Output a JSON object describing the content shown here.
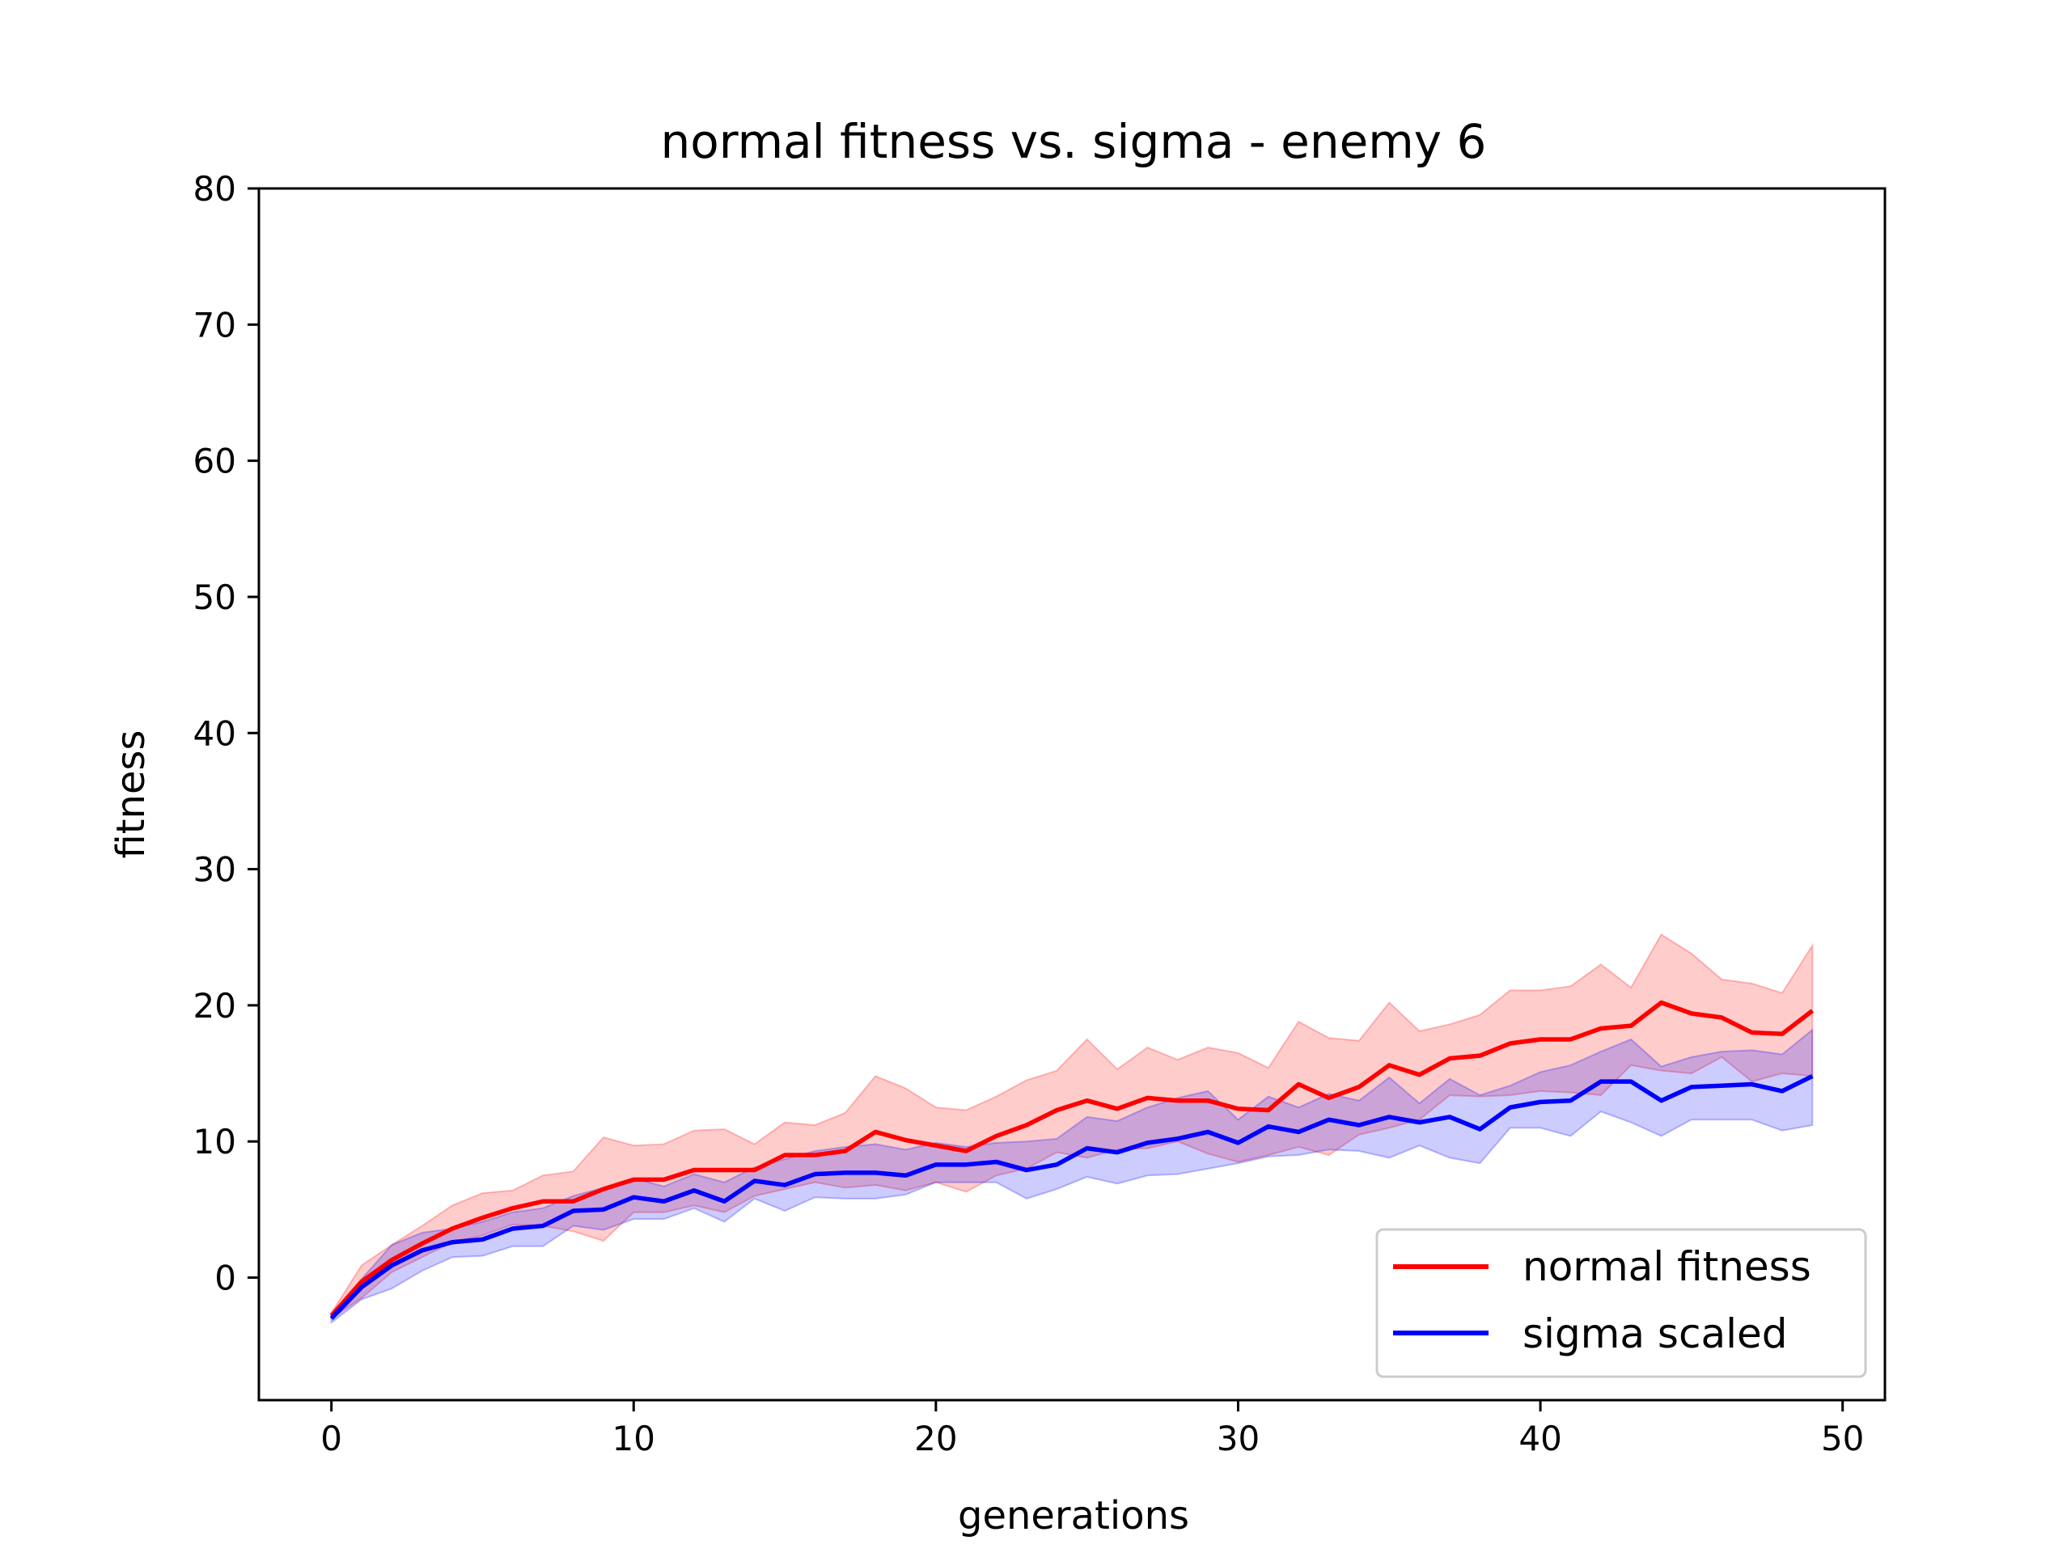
{
  "chart_data": {
    "type": "line",
    "title": "normal fitness vs. sigma - enemy 6",
    "xlabel": "generations",
    "ylabel": "fitness",
    "xlim": [
      -2.4,
      51.4
    ],
    "ylim": [
      -9,
      80
    ],
    "xticks": [
      0,
      10,
      20,
      30,
      40,
      50
    ],
    "yticks": [
      0,
      10,
      20,
      30,
      40,
      50,
      60,
      70,
      80
    ],
    "grid": false,
    "legend_position": "lower-right",
    "x": [
      0,
      1,
      2,
      3,
      4,
      5,
      6,
      7,
      8,
      9,
      10,
      11,
      12,
      13,
      14,
      15,
      16,
      17,
      18,
      19,
      20,
      21,
      22,
      23,
      24,
      25,
      26,
      27,
      28,
      29,
      30,
      31,
      32,
      33,
      34,
      35,
      36,
      37,
      38,
      39,
      40,
      41,
      42,
      43,
      44,
      45,
      46,
      47,
      48,
      49
    ],
    "series": [
      {
        "name": "normal fitness",
        "color": "#ff0000",
        "band_color": "#ff0000",
        "values": [
          -2.8,
          -0.3,
          1.3,
          2.5,
          3.6,
          4.4,
          5.1,
          5.6,
          5.6,
          6.5,
          7.2,
          7.2,
          7.9,
          7.9,
          7.9,
          9.0,
          9.0,
          9.3,
          10.7,
          10.1,
          9.7,
          9.3,
          10.4,
          11.2,
          12.3,
          13.0,
          12.4,
          13.2,
          13.0,
          13.0,
          12.4,
          12.3,
          14.2,
          13.2,
          14.0,
          15.6,
          14.9,
          16.1,
          16.3,
          17.2,
          17.5,
          17.5,
          18.3,
          18.5,
          20.2,
          19.4,
          19.1,
          18.0,
          17.9,
          19.6
        ],
        "upper": [
          -2.6,
          0.9,
          2.4,
          3.8,
          5.3,
          6.2,
          6.4,
          7.5,
          7.8,
          10.3,
          9.7,
          9.8,
          10.8,
          10.9,
          9.8,
          11.4,
          11.2,
          12.1,
          14.8,
          13.9,
          12.5,
          12.3,
          13.3,
          14.5,
          15.2,
          17.5,
          15.3,
          16.9,
          16.0,
          16.9,
          16.5,
          15.4,
          18.8,
          17.6,
          17.4,
          20.2,
          18.1,
          18.6,
          19.3,
          21.1,
          21.1,
          21.4,
          23.0,
          21.3,
          25.2,
          23.8,
          21.9,
          21.6,
          20.9,
          24.4
        ],
        "lower": [
          -3.0,
          -1.5,
          0.4,
          1.5,
          2.6,
          3.1,
          3.9,
          3.8,
          3.4,
          2.7,
          4.8,
          4.8,
          5.3,
          4.8,
          6.0,
          6.5,
          7.0,
          6.6,
          6.8,
          6.4,
          7.0,
          6.3,
          7.5,
          8.0,
          9.2,
          8.8,
          9.4,
          9.5,
          10.0,
          9.1,
          8.5,
          9.0,
          9.6,
          9.0,
          10.5,
          11.0,
          11.6,
          13.4,
          13.3,
          13.4,
          13.7,
          13.6,
          13.4,
          15.6,
          15.2,
          15.0,
          16.2,
          14.4,
          15.0,
          14.8
        ]
      },
      {
        "name": "sigma scaled",
        "color": "#0000ff",
        "band_color": "#0000ff",
        "values": [
          -3.0,
          -0.7,
          0.9,
          2.0,
          2.6,
          2.8,
          3.6,
          3.8,
          4.9,
          5.0,
          5.9,
          5.6,
          6.4,
          5.6,
          7.1,
          6.8,
          7.6,
          7.7,
          7.7,
          7.5,
          8.3,
          8.3,
          8.5,
          7.9,
          8.3,
          9.5,
          9.2,
          9.9,
          10.2,
          10.7,
          9.9,
          11.1,
          10.7,
          11.6,
          11.2,
          11.8,
          11.4,
          11.8,
          10.9,
          12.5,
          12.9,
          13.0,
          14.4,
          14.4,
          13.0,
          14.0,
          14.1,
          14.2,
          13.7,
          14.8
        ],
        "upper": [
          -2.7,
          -0.1,
          2.4,
          3.3,
          3.6,
          4.1,
          4.8,
          5.1,
          6.0,
          6.6,
          7.3,
          6.7,
          7.6,
          7.0,
          8.1,
          8.7,
          9.3,
          9.6,
          9.8,
          9.4,
          9.9,
          9.6,
          9.9,
          10.0,
          10.2,
          11.8,
          11.5,
          12.5,
          13.2,
          13.7,
          11.6,
          13.3,
          12.5,
          13.5,
          13.0,
          14.7,
          12.8,
          14.6,
          13.4,
          14.1,
          15.1,
          15.6,
          16.6,
          17.5,
          15.5,
          16.2,
          16.6,
          16.7,
          16.4,
          18.2
        ],
        "lower": [
          -3.3,
          -1.6,
          -0.8,
          0.5,
          1.5,
          1.6,
          2.3,
          2.3,
          3.8,
          3.5,
          4.3,
          4.3,
          5.1,
          4.1,
          5.8,
          4.9,
          5.9,
          5.8,
          5.8,
          6.1,
          7.0,
          7.0,
          7.0,
          5.8,
          6.5,
          7.4,
          6.9,
          7.5,
          7.6,
          8.0,
          8.4,
          8.9,
          9.0,
          9.4,
          9.3,
          8.8,
          9.7,
          8.8,
          8.4,
          11.0,
          11.0,
          10.4,
          12.2,
          11.4,
          10.4,
          11.6,
          11.6,
          11.6,
          10.8,
          11.2
        ]
      }
    ]
  }
}
